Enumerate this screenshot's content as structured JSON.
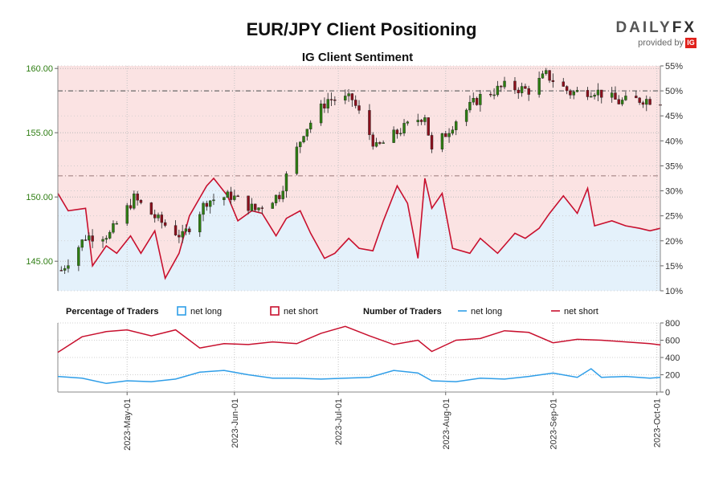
{
  "title": "EUR/JPY Client Positioning",
  "subtitle": "IG Client Sentiment",
  "brand": {
    "name_part1": "DAILY",
    "name_part2": "FX",
    "tagline": "provided by",
    "badge": "IG"
  },
  "colors": {
    "long": "#2f9ee8",
    "short": "#c8102e",
    "short_fill": "#fbe3e3",
    "long_fill": "#e4f1fb",
    "candle_up": "#2e7d12",
    "candle_down": "#8b0f1c",
    "price_axis": "#2e7d12"
  },
  "legend": {
    "percentage_heading": "Percentage of Traders",
    "pct_long": "net long",
    "pct_short": "net short",
    "number_heading": "Number of Traders",
    "num_long": "net long",
    "num_short": "net short"
  },
  "chart_data": [
    {
      "type": "candlestick",
      "title": "EUR/JPY Client Positioning",
      "x_ticks": [
        "2023-May-01",
        "2023-Jun-01",
        "2023-Jul-01",
        "2023-Aug-01",
        "2023-Sep-01",
        "2023-Oct-01"
      ],
      "x_range": [
        "2023-04-11",
        "2023-10-02"
      ],
      "y_left_ticks": [
        "160.00",
        "155.00",
        "150.00",
        "145.00"
      ],
      "y_left_range": [
        142.7,
        160.2
      ],
      "y_right_ticks": [
        "55%",
        "50%",
        "45%",
        "40%",
        "35%",
        "30%",
        "25%",
        "20%",
        "15%",
        "10%"
      ],
      "y_right_range": [
        10,
        55
      ],
      "reference_line_pct": 50,
      "price_weekly_closes": [
        {
          "date": "2023-04-12",
          "close": 144.3
        },
        {
          "date": "2023-04-19",
          "close": 146.9
        },
        {
          "date": "2023-04-26",
          "close": 147.1
        },
        {
          "date": "2023-05-03",
          "close": 149.9
        },
        {
          "date": "2023-05-10",
          "close": 148.2
        },
        {
          "date": "2023-05-17",
          "close": 146.9
        },
        {
          "date": "2023-05-24",
          "close": 149.7
        },
        {
          "date": "2023-05-31",
          "close": 150.1
        },
        {
          "date": "2023-06-07",
          "close": 149.0
        },
        {
          "date": "2023-06-14",
          "close": 150.2
        },
        {
          "date": "2023-06-21",
          "close": 155.1
        },
        {
          "date": "2023-06-28",
          "close": 157.6
        },
        {
          "date": "2023-07-05",
          "close": 157.6
        },
        {
          "date": "2023-07-12",
          "close": 153.8
        },
        {
          "date": "2023-07-19",
          "close": 155.2
        },
        {
          "date": "2023-07-26",
          "close": 156.4
        },
        {
          "date": "2023-07-28",
          "close": 153.5
        },
        {
          "date": "2023-08-04",
          "close": 156.0
        },
        {
          "date": "2023-08-11",
          "close": 157.8
        },
        {
          "date": "2023-08-18",
          "close": 158.6
        },
        {
          "date": "2023-08-25",
          "close": 158.3
        },
        {
          "date": "2023-08-30",
          "close": 159.5
        },
        {
          "date": "2023-09-06",
          "close": 158.1
        },
        {
          "date": "2023-09-13",
          "close": 158.3
        },
        {
          "date": "2023-09-20",
          "close": 157.4
        },
        {
          "date": "2023-09-27",
          "close": 157.6
        },
        {
          "date": "2023-10-02",
          "close": 157.5
        }
      ],
      "net_long_pct": [
        {
          "date": "2023-04-11",
          "value": 29.5
        },
        {
          "date": "2023-04-14",
          "value": 26.0
        },
        {
          "date": "2023-04-19",
          "value": 26.5
        },
        {
          "date": "2023-04-21",
          "value": 15.0
        },
        {
          "date": "2023-04-25",
          "value": 19.0
        },
        {
          "date": "2023-04-28",
          "value": 17.5
        },
        {
          "date": "2023-05-02",
          "value": 21.0
        },
        {
          "date": "2023-05-05",
          "value": 17.5
        },
        {
          "date": "2023-05-09",
          "value": 22.0
        },
        {
          "date": "2023-05-12",
          "value": 12.5
        },
        {
          "date": "2023-05-16",
          "value": 17.5
        },
        {
          "date": "2023-05-19",
          "value": 25.0
        },
        {
          "date": "2023-05-24",
          "value": 31.0
        },
        {
          "date": "2023-05-26",
          "value": 32.5
        },
        {
          "date": "2023-05-30",
          "value": 29.0
        },
        {
          "date": "2023-06-02",
          "value": 24.0
        },
        {
          "date": "2023-06-06",
          "value": 26.0
        },
        {
          "date": "2023-06-09",
          "value": 25.5
        },
        {
          "date": "2023-06-13",
          "value": 21.0
        },
        {
          "date": "2023-06-16",
          "value": 24.5
        },
        {
          "date": "2023-06-20",
          "value": 26.0
        },
        {
          "date": "2023-06-23",
          "value": 21.5
        },
        {
          "date": "2023-06-27",
          "value": 16.5
        },
        {
          "date": "2023-06-30",
          "value": 17.5
        },
        {
          "date": "2023-07-04",
          "value": 20.5
        },
        {
          "date": "2023-07-07",
          "value": 18.5
        },
        {
          "date": "2023-07-11",
          "value": 18.0
        },
        {
          "date": "2023-07-14",
          "value": 24.0
        },
        {
          "date": "2023-07-18",
          "value": 31.0
        },
        {
          "date": "2023-07-21",
          "value": 27.5
        },
        {
          "date": "2023-07-24",
          "value": 16.5
        },
        {
          "date": "2023-07-26",
          "value": 32.5
        },
        {
          "date": "2023-07-28",
          "value": 26.5
        },
        {
          "date": "2023-07-31",
          "value": 29.5
        },
        {
          "date": "2023-08-03",
          "value": 18.5
        },
        {
          "date": "2023-08-08",
          "value": 17.5
        },
        {
          "date": "2023-08-11",
          "value": 20.5
        },
        {
          "date": "2023-08-16",
          "value": 17.5
        },
        {
          "date": "2023-08-21",
          "value": 21.5
        },
        {
          "date": "2023-08-24",
          "value": 20.5
        },
        {
          "date": "2023-08-28",
          "value": 22.5
        },
        {
          "date": "2023-08-31",
          "value": 25.5
        },
        {
          "date": "2023-09-04",
          "value": 29.0
        },
        {
          "date": "2023-09-08",
          "value": 25.5
        },
        {
          "date": "2023-09-11",
          "value": 30.5
        },
        {
          "date": "2023-09-13",
          "value": 23.0
        },
        {
          "date": "2023-09-18",
          "value": 24.0
        },
        {
          "date": "2023-09-22",
          "value": 23.0
        },
        {
          "date": "2023-09-26",
          "value": 22.5
        },
        {
          "date": "2023-09-29",
          "value": 22.0
        },
        {
          "date": "2023-10-02",
          "value": 22.5
        }
      ]
    },
    {
      "type": "line",
      "y_ticks": [
        "800",
        "600",
        "400",
        "200",
        "0"
      ],
      "y_range": [
        0,
        800
      ],
      "series": [
        {
          "name": "net short",
          "points": [
            {
              "date": "2023-04-11",
              "value": 460
            },
            {
              "date": "2023-04-18",
              "value": 640
            },
            {
              "date": "2023-04-25",
              "value": 700
            },
            {
              "date": "2023-05-01",
              "value": 720
            },
            {
              "date": "2023-05-08",
              "value": 650
            },
            {
              "date": "2023-05-15",
              "value": 720
            },
            {
              "date": "2023-05-22",
              "value": 510
            },
            {
              "date": "2023-05-29",
              "value": 560
            },
            {
              "date": "2023-06-05",
              "value": 550
            },
            {
              "date": "2023-06-12",
              "value": 580
            },
            {
              "date": "2023-06-19",
              "value": 560
            },
            {
              "date": "2023-06-26",
              "value": 680
            },
            {
              "date": "2023-07-03",
              "value": 760
            },
            {
              "date": "2023-07-10",
              "value": 650
            },
            {
              "date": "2023-07-17",
              "value": 550
            },
            {
              "date": "2023-07-24",
              "value": 600
            },
            {
              "date": "2023-07-28",
              "value": 470
            },
            {
              "date": "2023-08-04",
              "value": 600
            },
            {
              "date": "2023-08-11",
              "value": 620
            },
            {
              "date": "2023-08-18",
              "value": 710
            },
            {
              "date": "2023-08-25",
              "value": 690
            },
            {
              "date": "2023-09-01",
              "value": 570
            },
            {
              "date": "2023-09-08",
              "value": 610
            },
            {
              "date": "2023-09-15",
              "value": 600
            },
            {
              "date": "2023-09-22",
              "value": 580
            },
            {
              "date": "2023-09-29",
              "value": 560
            },
            {
              "date": "2023-10-02",
              "value": 545
            }
          ]
        },
        {
          "name": "net long",
          "points": [
            {
              "date": "2023-04-11",
              "value": 180
            },
            {
              "date": "2023-04-18",
              "value": 160
            },
            {
              "date": "2023-04-25",
              "value": 100
            },
            {
              "date": "2023-05-01",
              "value": 130
            },
            {
              "date": "2023-05-08",
              "value": 120
            },
            {
              "date": "2023-05-15",
              "value": 150
            },
            {
              "date": "2023-05-22",
              "value": 230
            },
            {
              "date": "2023-05-29",
              "value": 250
            },
            {
              "date": "2023-06-05",
              "value": 200
            },
            {
              "date": "2023-06-12",
              "value": 160
            },
            {
              "date": "2023-06-19",
              "value": 160
            },
            {
              "date": "2023-06-26",
              "value": 150
            },
            {
              "date": "2023-07-03",
              "value": 160
            },
            {
              "date": "2023-07-10",
              "value": 170
            },
            {
              "date": "2023-07-17",
              "value": 250
            },
            {
              "date": "2023-07-24",
              "value": 220
            },
            {
              "date": "2023-07-28",
              "value": 130
            },
            {
              "date": "2023-08-04",
              "value": 120
            },
            {
              "date": "2023-08-11",
              "value": 160
            },
            {
              "date": "2023-08-18",
              "value": 150
            },
            {
              "date": "2023-08-25",
              "value": 180
            },
            {
              "date": "2023-09-01",
              "value": 220
            },
            {
              "date": "2023-09-08",
              "value": 170
            },
            {
              "date": "2023-09-12",
              "value": 270
            },
            {
              "date": "2023-09-15",
              "value": 170
            },
            {
              "date": "2023-09-22",
              "value": 180
            },
            {
              "date": "2023-09-29",
              "value": 160
            },
            {
              "date": "2023-10-02",
              "value": 170
            }
          ]
        }
      ]
    }
  ]
}
